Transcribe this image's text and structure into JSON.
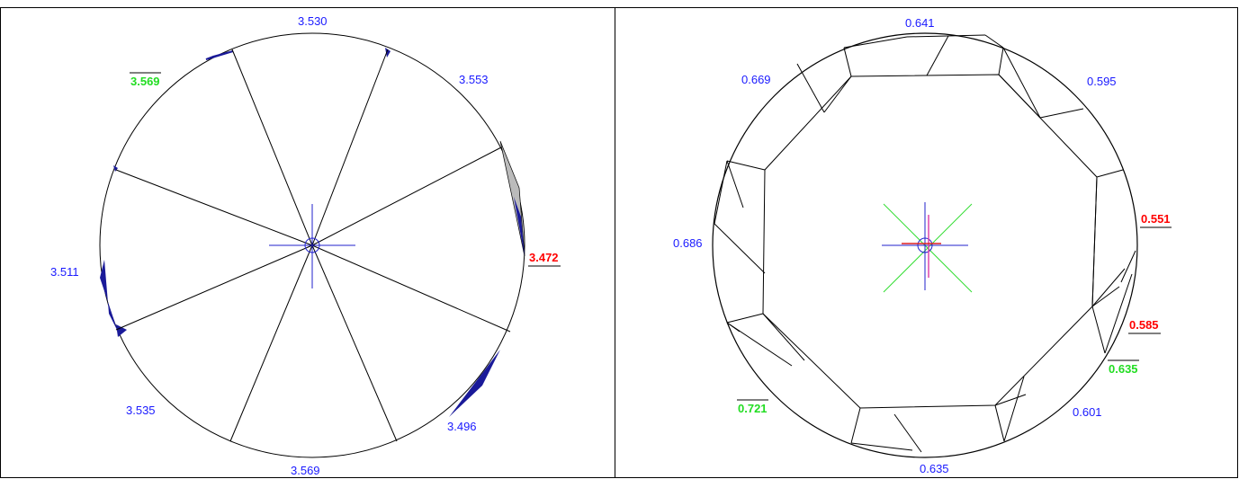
{
  "left_panel": {
    "labels": {
      "top": "3.530",
      "upper_right": "3.553",
      "upper_left": "3.569",
      "right": "3.472",
      "left": "3.511",
      "lower_left": "3.535",
      "lower_right": "3.496",
      "bottom": "3.569"
    }
  },
  "right_panel": {
    "labels": {
      "top": "0.641",
      "upper_left": "0.669",
      "upper_right": "0.595",
      "right_upper": "0.551",
      "left": "0.686",
      "right_lower": "0.585",
      "right_green": "0.635",
      "lower_left": "0.721",
      "lower_right": "0.601",
      "bottom": "0.635"
    }
  },
  "colors": {
    "label_normal": "#1a1aff",
    "label_min": "#ff0000",
    "label_max": "#22dd22",
    "crosshair_blue": "#2222cc",
    "crosshair_green": "#33dd33",
    "crosshair_magenta": "#dd44aa",
    "crosshair_red": "#dd2222"
  }
}
